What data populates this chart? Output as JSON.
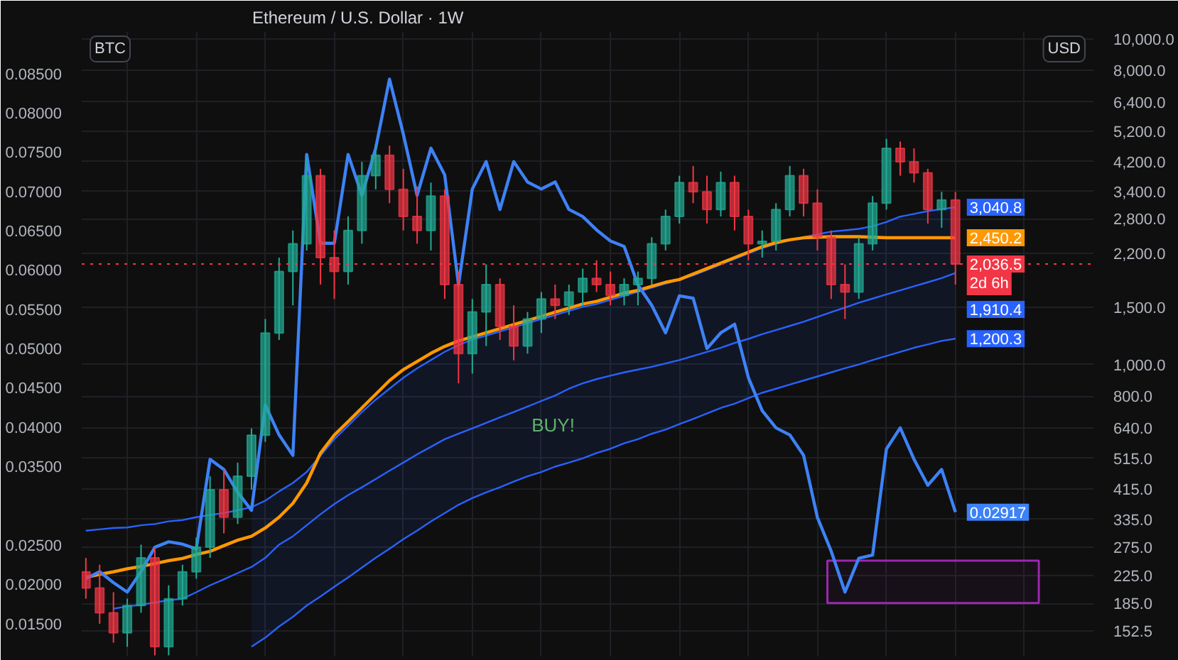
{
  "chart_data": {
    "type": "candlestick",
    "title": "Ethereum / U.S. Dollar · 1W",
    "ylabel": "BTC",
    "y2label": "USD",
    "categories": [
      null,
      null,
      null,
      null,
      null,
      null,
      null,
      null,
      null,
      null,
      null,
      null,
      null,
      null,
      null,
      null,
      null,
      null,
      null,
      null,
      null,
      null,
      null,
      null,
      null,
      null,
      null,
      null,
      null,
      null,
      null,
      null,
      null,
      null,
      null,
      null,
      null,
      null,
      null,
      null,
      null,
      null,
      null,
      null,
      null,
      null,
      null,
      null,
      null,
      null,
      null,
      null,
      null,
      null,
      null,
      null,
      null,
      null,
      null,
      null,
      null,
      null,
      null,
      null
    ],
    "ylim": [
      0.0108,
      0.0903
    ],
    "yticks": [
      {
        "value": 0.015,
        "label": "0.01500"
      },
      {
        "value": 0.02,
        "label": "0.02000"
      },
      {
        "value": 0.025,
        "label": "0.02500"
      },
      {
        "value": 0.035,
        "label": "0.03500"
      },
      {
        "value": 0.04,
        "label": "0.04000"
      },
      {
        "value": 0.045,
        "label": "0.04500"
      },
      {
        "value": 0.05,
        "label": "0.05000"
      },
      {
        "value": 0.055,
        "label": "0.05500"
      },
      {
        "value": 0.06,
        "label": "0.06000"
      },
      {
        "value": 0.065,
        "label": "0.06500"
      },
      {
        "value": 0.07,
        "label": "0.07000"
      },
      {
        "value": 0.075,
        "label": "0.07500"
      },
      {
        "value": 0.08,
        "label": "0.08000"
      },
      {
        "value": 0.085,
        "label": "0.08500"
      }
    ],
    "y2lim": [
      127,
      10500
    ],
    "y2ticks": [
      {
        "value": 152.5,
        "label": "152.5"
      },
      {
        "value": 185,
        "label": "185.0"
      },
      {
        "value": 225,
        "label": "225.0"
      },
      {
        "value": 275,
        "label": "275.0"
      },
      {
        "value": 335,
        "label": "335.0"
      },
      {
        "value": 415,
        "label": "415.0"
      },
      {
        "value": 515,
        "label": "515.0"
      },
      {
        "value": 640,
        "label": "640.0"
      },
      {
        "value": 800,
        "label": "800.0"
      },
      {
        "value": 1000,
        "label": "1,000.0"
      },
      {
        "value": 1500,
        "label": "1,500.0"
      },
      {
        "value": 2200,
        "label": "2,200.0"
      },
      {
        "value": 2800,
        "label": "2,800.0"
      },
      {
        "value": 3400,
        "label": "3,400.0"
      },
      {
        "value": 4200,
        "label": "4,200.0"
      },
      {
        "value": 5200,
        "label": "5,200.0"
      },
      {
        "value": 6400,
        "label": "6,400.0"
      },
      {
        "value": 8000,
        "label": "8,000.0"
      },
      {
        "value": 10000,
        "label": "10,000.0"
      }
    ],
    "log": "y2",
    "grid": true,
    "series": [
      {
        "type": "line",
        "axis": "y2",
        "color": "#2962ff",
        "values": [
          309,
          312,
          315,
          316,
          321,
          324,
          330,
          333,
          340,
          345,
          350,
          357,
          365,
          382,
          408,
          433,
          468,
          525,
          590,
          649,
          715,
          780,
          843,
          911,
          974,
          1032,
          1094,
          1148,
          1193,
          1228,
          1264,
          1302,
          1340,
          1379,
          1420,
          1462,
          1504,
          1534,
          1579,
          1625,
          1673,
          1722,
          1773,
          1824,
          1878,
          1953,
          2030,
          2110,
          2193,
          2279,
          2346,
          2415,
          2460,
          2510,
          2559,
          2584,
          2609,
          2660,
          2738,
          2846,
          2901,
          2958,
          3001,
          3040.8
        ],
        "value_labels": [
          null,
          null,
          null,
          null,
          null,
          null,
          null,
          null,
          null,
          null,
          null,
          null,
          null,
          null,
          null,
          null,
          null,
          null,
          null,
          null,
          null,
          null,
          null,
          null,
          null,
          null,
          null,
          null,
          null,
          null,
          null,
          null,
          null,
          null,
          null,
          null,
          null,
          null,
          null,
          null,
          null,
          null,
          null,
          null,
          null,
          null,
          null,
          null,
          null,
          null,
          null,
          null,
          null,
          null,
          null,
          null,
          null,
          null,
          null,
          null,
          null,
          null,
          null,
          "3,040.8"
        ]
      },
      {
        "type": "line",
        "axis": "y2",
        "color": "#2962ff",
        "values": [
          null,
          null,
          178,
          181,
          183,
          186,
          189,
          191,
          200,
          210,
          219,
          229,
          239,
          255,
          280,
          297,
          321,
          347,
          373,
          397,
          420,
          445,
          472,
          500,
          530,
          559,
          590,
          613,
          637,
          662,
          688,
          715,
          743,
          773,
          803,
          843,
          876,
          902,
          924,
          946,
          965,
          984,
          1008,
          1032,
          1062,
          1094,
          1126,
          1165,
          1199,
          1240,
          1276,
          1314,
          1353,
          1400,
          1448,
          1497,
          1548,
          1594,
          1641,
          1689,
          1739,
          1789,
          1843,
          1910.4
        ],
        "upper": [
          null,
          null,
          null,
          null,
          null,
          null,
          null,
          null,
          null,
          null,
          null,
          null,
          365,
          382,
          408,
          433,
          468,
          525,
          590,
          649,
          715,
          780,
          843,
          911,
          974,
          1032,
          1094,
          1148,
          1193,
          1228,
          1264,
          1302,
          1340,
          1379,
          1420,
          1462,
          1504,
          1534,
          1579,
          1625,
          1673,
          1722,
          1773,
          1824,
          1878,
          1953,
          2030,
          2110,
          2193,
          2279,
          2346,
          2415,
          2460,
          2510,
          2559,
          2584,
          2609,
          2660,
          2738,
          2846,
          2901,
          2958,
          3001,
          3040.8
        ],
        "lower": [
          null,
          null,
          null,
          null,
          null,
          null,
          null,
          null,
          null,
          null,
          null,
          null,
          136,
          145,
          157,
          168,
          182,
          194,
          208,
          222,
          238,
          255,
          272,
          291,
          309,
          330,
          350,
          371,
          389,
          405,
          420,
          437,
          454,
          468,
          486,
          500,
          515,
          535,
          551,
          573,
          590,
          613,
          631,
          656,
          681,
          708,
          736,
          758,
          788,
          819,
          843,
          868,
          893,
          919,
          946,
          974,
          1000,
          1032,
          1062,
          1094,
          1126,
          1153,
          1182,
          1200.3
        ],
        "value_labels": [
          null,
          null,
          null,
          null,
          null,
          null,
          null,
          null,
          null,
          null,
          null,
          null,
          null,
          null,
          null,
          null,
          null,
          null,
          null,
          null,
          null,
          null,
          null,
          null,
          null,
          null,
          null,
          null,
          null,
          null,
          null,
          null,
          null,
          null,
          null,
          null,
          null,
          null,
          null,
          null,
          null,
          null,
          null,
          null,
          null,
          null,
          null,
          null,
          null,
          null,
          null,
          null,
          null,
          null,
          null,
          null,
          null,
          null,
          null,
          null,
          null,
          null,
          null,
          "1,910.4"
        ]
      },
      {
        "type": "line",
        "axis": "y2",
        "color": "#2962ff",
        "values": [
          null,
          null,
          null,
          null,
          null,
          null,
          null,
          null,
          null,
          null,
          null,
          null,
          136,
          145,
          157,
          168,
          182,
          194,
          208,
          222,
          238,
          255,
          272,
          291,
          309,
          330,
          350,
          371,
          389,
          405,
          420,
          437,
          454,
          468,
          486,
          500,
          515,
          535,
          551,
          573,
          590,
          613,
          631,
          656,
          681,
          708,
          736,
          758,
          788,
          819,
          843,
          868,
          893,
          919,
          946,
          974,
          1000,
          1032,
          1062,
          1094,
          1126,
          1153,
          1182,
          1200.3
        ],
        "value_labels": [
          null,
          null,
          null,
          null,
          null,
          null,
          null,
          null,
          null,
          null,
          null,
          null,
          null,
          null,
          null,
          null,
          null,
          null,
          null,
          null,
          null,
          null,
          null,
          null,
          null,
          null,
          null,
          null,
          null,
          null,
          null,
          null,
          null,
          null,
          null,
          null,
          null,
          null,
          null,
          null,
          null,
          null,
          null,
          null,
          null,
          null,
          null,
          null,
          null,
          null,
          null,
          null,
          null,
          null,
          null,
          null,
          null,
          null,
          null,
          null,
          null,
          null,
          null,
          "1,200.3"
        ]
      },
      {
        "axis": "y2",
        "colors": [
          "#f23645",
          "#f23645",
          "#f23645",
          "#22ab94",
          "#22ab94",
          "#f23645",
          "#22ab94",
          "#22ab94",
          "#22ab94",
          "#22ab94",
          "#f23645",
          "#22ab94",
          "#22ab94",
          "#22ab94",
          "#22ab94",
          "#22ab94",
          "#22ab94",
          "#f23645",
          "#f23645",
          "#22ab94",
          "#22ab94",
          "#22ab94",
          "#f23645",
          "#f23645",
          "#f23645",
          "#22ab94",
          "#f23645",
          "#f23645",
          "#22ab94",
          "#22ab94",
          "#f23645",
          "#f23645",
          "#22ab94",
          "#22ab94",
          "#f23645",
          "#22ab94",
          "#22ab94",
          "#f23645",
          "#f23645",
          "#22ab94",
          "#22ab94",
          "#22ab94",
          "#22ab94",
          "#22ab94",
          "#f23645",
          "#f23645",
          "#22ab94",
          "#f23645",
          "#f23645",
          "#22ab94",
          "#22ab94",
          "#22ab94",
          "#f23645",
          "#f23645",
          "#f23645",
          "#f23645",
          "#22ab94",
          "#22ab94",
          "#22ab94",
          "#f23645",
          "#f23645",
          "#f23645",
          "#22ab94",
          "#f23645"
        ],
        "ohlc": [
          [
            231,
            255,
            191,
            206
          ],
          [
            206,
            243,
            160,
            173
          ],
          [
            173,
            200,
            140,
            150
          ],
          [
            150,
            191,
            136,
            182
          ],
          [
            182,
            280,
            173,
            255
          ],
          [
            255,
            275,
            128,
            136
          ],
          [
            136,
            210,
            128,
            191
          ],
          [
            191,
            243,
            182,
            231
          ],
          [
            231,
            294,
            220,
            275
          ],
          [
            275,
            454,
            255,
            413
          ],
          [
            413,
            477,
            303,
            340
          ],
          [
            340,
            500,
            324,
            454
          ],
          [
            454,
            637,
            413,
            607
          ],
          [
            607,
            1380,
            579,
            1250
          ],
          [
            1250,
            2130,
            1190,
            1930
          ],
          [
            1930,
            2580,
            1520,
            2350
          ],
          [
            2350,
            4310,
            2240,
            3800
          ],
          [
            3800,
            3990,
            1760,
            2130
          ],
          [
            2130,
            2580,
            1590,
            1930
          ],
          [
            1930,
            2850,
            1760,
            2580
          ],
          [
            2580,
            4190,
            2350,
            3800
          ],
          [
            3800,
            4750,
            3450,
            4390
          ],
          [
            4390,
            4700,
            3130,
            3450
          ],
          [
            3450,
            3990,
            2580,
            2850
          ],
          [
            2850,
            3520,
            2350,
            2580
          ],
          [
            2580,
            3620,
            2240,
            3290
          ],
          [
            3290,
            3450,
            1590,
            1760
          ],
          [
            1760,
            1930,
            876,
            1080
          ],
          [
            1080,
            1590,
            938,
            1450
          ],
          [
            1450,
            2030,
            1140,
            1760
          ],
          [
            1760,
            1840,
            1190,
            1310
          ],
          [
            1310,
            1520,
            1030,
            1140
          ],
          [
            1140,
            1450,
            1080,
            1380
          ],
          [
            1380,
            1670,
            1250,
            1590
          ],
          [
            1590,
            1760,
            1380,
            1520
          ],
          [
            1520,
            1760,
            1420,
            1670
          ],
          [
            1670,
            1970,
            1520,
            1840
          ],
          [
            1840,
            2090,
            1670,
            1760
          ],
          [
            1760,
            1930,
            1520,
            1630
          ],
          [
            1630,
            1840,
            1520,
            1760
          ],
          [
            1760,
            1930,
            1520,
            1840
          ],
          [
            1840,
            2460,
            1760,
            2350
          ],
          [
            2350,
            2990,
            2240,
            2850
          ],
          [
            2850,
            3800,
            2710,
            3620
          ],
          [
            3620,
            4070,
            3130,
            3390
          ],
          [
            3390,
            3800,
            2710,
            2990
          ],
          [
            2990,
            3910,
            2850,
            3620
          ],
          [
            3620,
            3800,
            2580,
            2850
          ],
          [
            2850,
            2990,
            2090,
            2350
          ],
          [
            2350,
            2580,
            2130,
            2390
          ],
          [
            2390,
            3130,
            2240,
            2990
          ],
          [
            2990,
            4070,
            2850,
            3800
          ],
          [
            3800,
            3990,
            2850,
            3130
          ],
          [
            3130,
            3450,
            2240,
            2460
          ],
          [
            2460,
            2580,
            1590,
            1760
          ],
          [
            1760,
            2030,
            1380,
            1670
          ],
          [
            1670,
            2460,
            1590,
            2350
          ],
          [
            2350,
            3290,
            2240,
            3130
          ],
          [
            3130,
            4930,
            2990,
            4610
          ],
          [
            4610,
            4840,
            3800,
            4190
          ],
          [
            4190,
            4610,
            3620,
            3880
          ],
          [
            3880,
            3990,
            2710,
            2990
          ],
          [
            2990,
            3390,
            2630,
            3200
          ],
          [
            3200,
            3390,
            1760,
            2036.5
          ]
        ]
      },
      {
        "type": "line",
        "axis": "y2",
        "color": "#ff9800",
        "values": [
          222,
          227,
          231,
          236,
          240,
          245,
          250,
          254,
          261,
          267,
          278,
          289,
          297,
          315,
          340,
          375,
          433,
          535,
          607,
          668,
          736,
          811,
          893,
          965,
          1022,
          1083,
          1137,
          1182,
          1217,
          1252,
          1289,
          1327,
          1366,
          1406,
          1448,
          1490,
          1534,
          1564,
          1609,
          1657,
          1689,
          1739,
          1789,
          1824,
          1897,
          1972,
          2049,
          2130,
          2214,
          2301,
          2369,
          2415,
          2450,
          2460,
          2470,
          2470,
          2470,
          2460,
          2450,
          2450,
          2450,
          2450,
          2450,
          2450.2
        ],
        "value_labels": [
          null,
          null,
          null,
          null,
          null,
          null,
          null,
          null,
          null,
          null,
          null,
          null,
          null,
          null,
          null,
          null,
          null,
          null,
          null,
          null,
          null,
          null,
          null,
          null,
          null,
          null,
          null,
          null,
          null,
          null,
          null,
          null,
          null,
          null,
          null,
          null,
          null,
          null,
          null,
          null,
          null,
          null,
          null,
          null,
          null,
          null,
          null,
          null,
          null,
          null,
          null,
          null,
          null,
          null,
          null,
          null,
          null,
          null,
          null,
          null,
          null,
          null,
          null,
          "2,450.2"
        ]
      },
      {
        "type": "line",
        "axis": "y",
        "color": "#3d82f6",
        "values": [
          0.0207,
          0.0216,
          0.0202,
          0.019,
          0.0216,
          0.0247,
          0.0254,
          0.0251,
          0.0245,
          0.0359,
          0.0346,
          0.0317,
          0.0294,
          0.0428,
          0.039,
          0.0364,
          0.0747,
          0.0634,
          0.0634,
          0.0747,
          0.0695,
          0.0755,
          0.0843,
          0.0773,
          0.0695,
          0.0755,
          0.0721,
          0.0581,
          0.0703,
          0.0738,
          0.0677,
          0.0738,
          0.0712,
          0.0703,
          0.0712,
          0.0677,
          0.0668,
          0.0651,
          0.0637,
          0.063,
          0.0581,
          0.0555,
          0.052,
          0.0567,
          0.0564,
          0.05,
          0.052,
          0.0531,
          0.0463,
          0.0421,
          0.0399,
          0.039,
          0.0364,
          0.0285,
          0.0242,
          0.019,
          0.0233,
          0.0237,
          0.0372,
          0.0399,
          0.0359,
          0.0326,
          0.0346,
          0.02917
        ],
        "value_labels": [
          null,
          null,
          null,
          null,
          null,
          null,
          null,
          null,
          null,
          null,
          null,
          null,
          null,
          null,
          null,
          null,
          null,
          null,
          null,
          null,
          null,
          null,
          null,
          null,
          null,
          null,
          null,
          null,
          null,
          null,
          null,
          null,
          null,
          null,
          null,
          null,
          null,
          null,
          null,
          null,
          null,
          null,
          null,
          null,
          null,
          null,
          null,
          null,
          null,
          null,
          null,
          null,
          null,
          null,
          null,
          null,
          null,
          null,
          null,
          null,
          null,
          null,
          null,
          "0.02917"
        ]
      }
    ],
    "ref_lines": [
      {
        "axis": "y2",
        "value": 2036.5,
        "label": "2,036.5\n2d 6h",
        "color": "#f23645",
        "line_style": "dotted"
      }
    ],
    "bands": [
      {
        "axis": "y",
        "from": 0.0176,
        "to": 0.023,
        "color": "#9c27b0"
      }
    ],
    "annotations": [
      "BUY!"
    ]
  }
}
